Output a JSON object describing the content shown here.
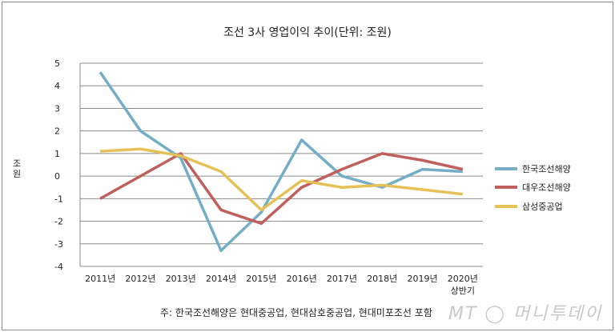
{
  "chart_data": {
    "type": "line",
    "title": "조선 3사 영업이익 추이(단위: 조원)",
    "ylabel": "조원",
    "ylim": [
      -4,
      5
    ],
    "yticks": [
      "5",
      "4",
      "3",
      "2",
      "1",
      "0",
      "-1",
      "-2",
      "-3",
      "-4"
    ],
    "ytick_values": [
      5,
      4,
      3,
      2,
      1,
      0,
      -1,
      -2,
      -3,
      -4
    ],
    "categories": [
      "2011년",
      "2012년",
      "2013년",
      "2014년",
      "2015년",
      "2016년",
      "2017년",
      "2018년",
      "2019년",
      "2020년 상반기"
    ],
    "grid": true,
    "legend": "right",
    "series": [
      {
        "name": "한국조선해양",
        "color": "#74aec6",
        "values": [
          4.6,
          2.0,
          0.8,
          -3.3,
          -1.6,
          1.6,
          0.0,
          -0.5,
          0.3,
          0.2
        ]
      },
      {
        "name": "대우조선해양",
        "color": "#c0605c",
        "values": [
          -1.0,
          0.0,
          1.0,
          -1.5,
          -2.1,
          -0.5,
          0.3,
          1.0,
          0.7,
          0.3
        ]
      },
      {
        "name": "삼성중공업",
        "color": "#e6c157",
        "values": [
          1.1,
          1.2,
          0.9,
          0.2,
          -1.5,
          -0.2,
          -0.5,
          -0.4,
          -0.6,
          -0.8
        ]
      }
    ]
  },
  "footnote": "주: 한국조선해양은 현대중공업, 현대삼호중공업, 현대미포조선 포함",
  "watermark": "MT 머니투데이"
}
